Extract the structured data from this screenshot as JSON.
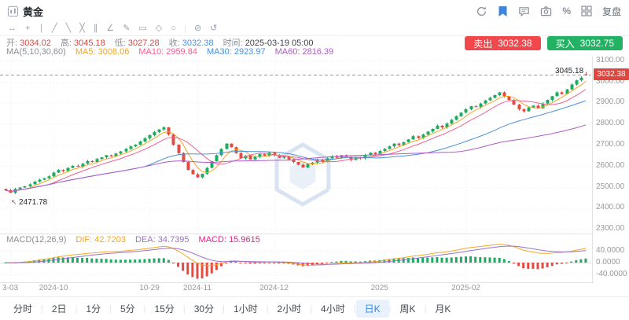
{
  "header": {
    "title": "黄金",
    "replay_label": "复盘"
  },
  "toolbar": {
    "icons": [
      {
        "name": "cursor-move-icon",
        "glyph": "↔"
      },
      {
        "name": "crosshair-icon",
        "glyph": "+"
      },
      {
        "name": "vertical-line-icon",
        "glyph": "∣"
      },
      {
        "name": "trend-line-icon",
        "glyph": "╱"
      },
      {
        "name": "ray-line-icon",
        "glyph": "╲"
      },
      {
        "name": "cross-lines-icon",
        "glyph": "╳"
      },
      {
        "name": "parallel-channel-icon",
        "glyph": "∥"
      },
      {
        "name": "angle-icon",
        "glyph": "∠"
      },
      {
        "name": "pencil-icon",
        "glyph": "✎"
      },
      {
        "name": "rectangle-icon",
        "glyph": "▭"
      },
      {
        "name": "diamond-icon",
        "glyph": "◇"
      },
      {
        "name": "circle-icon",
        "glyph": "○"
      },
      {
        "name": "eraser-icon",
        "glyph": "⊘"
      },
      {
        "name": "undo-icon",
        "glyph": "↺"
      }
    ]
  },
  "ohlc_bar": {
    "open_label": "开:",
    "open": "3034.02",
    "high_label": "高:",
    "high": "3045.18",
    "low_label": "低:",
    "low": "3027.28",
    "close_label": "收:",
    "close": "3032.38",
    "time_label": "时间:",
    "time": "2025-03-19 05:00"
  },
  "ma_bar": {
    "group": "MA(5,10,30,60)",
    "ma5_label": "MA5:",
    "ma5": "3008.06",
    "ma10_label": "MA10:",
    "ma10": "2959.84",
    "ma30_label": "MA30:",
    "ma30": "2923.97",
    "ma60_label": "MA60:",
    "ma60": "2816.39"
  },
  "macd_bar": {
    "group": "MACD(12,26,9)",
    "dif_label": "DIF:",
    "dif": "42.7203",
    "dea_label": "DEA:",
    "dea": "34.7395",
    "macd_label": "MACD:",
    "macd": "15.9615"
  },
  "trade": {
    "sell_label": "卖出",
    "sell_price": "3032.38",
    "buy_label": "买入",
    "buy_price": "3032.75"
  },
  "annotations": {
    "high": "3045.18",
    "low": "2471.78"
  },
  "price_tag": "3032.38",
  "axes": {
    "price_ticks": [
      "3100.00",
      "3000.00",
      "2900.00",
      "2800.00",
      "2700.00",
      "2600.00",
      "2500.00",
      "2400.00",
      "2300.00"
    ],
    "macd_ticks": [
      "40.0000",
      "0.0000",
      "-40.0000"
    ],
    "x_labels": [
      {
        "label": "3-03",
        "index": 1
      },
      {
        "label": "2024-10",
        "index": 10
      },
      {
        "label": "10-29",
        "index": 30
      },
      {
        "label": "2024-11",
        "index": 40
      },
      {
        "label": "2024-12",
        "index": 56
      },
      {
        "label": "2025",
        "index": 78
      },
      {
        "label": "2025-02",
        "index": 96
      }
    ]
  },
  "timeframe_tabs": [
    {
      "label": "分时",
      "active": false
    },
    {
      "label": "2日",
      "active": false
    },
    {
      "label": "1分",
      "active": false
    },
    {
      "label": "5分",
      "active": false
    },
    {
      "label": "15分",
      "active": false
    },
    {
      "label": "30分",
      "active": false
    },
    {
      "label": "1小时",
      "active": false
    },
    {
      "label": "2小时",
      "active": false
    },
    {
      "label": "4小时",
      "active": false
    },
    {
      "label": "日K",
      "active": true
    },
    {
      "label": "周K",
      "active": false
    },
    {
      "label": "月K",
      "active": false
    }
  ],
  "colors": {
    "up": "#1cab61",
    "down": "#e24b42",
    "ma5": "#f5a623",
    "ma10": "#f06292",
    "ma30": "#4a90d9",
    "ma60": "#b05ac6",
    "dif": "#f5a623",
    "dea": "#9b6fd0",
    "sell": "#f0484d",
    "buy": "#22b264",
    "tag": "#e2453d",
    "watermark": "#7fa4d2"
  },
  "chart_data": {
    "type": "candlestick",
    "symbol": "黄金",
    "period": "日K",
    "price_range": [
      2300,
      3100
    ],
    "macd_range": [
      -60,
      60
    ],
    "overlays": [
      "MA5",
      "MA10",
      "MA30",
      "MA60"
    ],
    "sub_indicator": "MACD(12,26,9)",
    "closes": [
      2484,
      2472,
      2490,
      2497,
      2503,
      2512,
      2525,
      2534,
      2541,
      2550,
      2568,
      2580,
      2575,
      2590,
      2600,
      2595,
      2610,
      2622,
      2618,
      2632,
      2640,
      2650,
      2645,
      2658,
      2668,
      2680,
      2692,
      2700,
      2715,
      2730,
      2745,
      2760,
      2772,
      2782,
      2748,
      2700,
      2660,
      2618,
      2580,
      2560,
      2545,
      2562,
      2590,
      2622,
      2650,
      2680,
      2705,
      2688,
      2660,
      2635,
      2648,
      2630,
      2642,
      2655,
      2648,
      2662,
      2650,
      2638,
      2645,
      2630,
      2618,
      2605,
      2592,
      2608,
      2615,
      2628,
      2620,
      2635,
      2645,
      2638,
      2650,
      2642,
      2628,
      2640,
      2635,
      2650,
      2662,
      2655,
      2670,
      2680,
      2692,
      2705,
      2698,
      2712,
      2725,
      2740,
      2732,
      2748,
      2762,
      2775,
      2790,
      2782,
      2800,
      2818,
      2835,
      2852,
      2868,
      2882,
      2878,
      2895,
      2910,
      2922,
      2935,
      2948,
      2930,
      2912,
      2890,
      2868,
      2858,
      2876,
      2885,
      2872,
      2895,
      2912,
      2930,
      2948,
      2940,
      2962,
      2985,
      3005,
      3018,
      3032.38
    ],
    "last_candle": {
      "open": 3034.02,
      "high": 3045.18,
      "low": 3027.28,
      "close": 3032.38
    },
    "low_annotation": {
      "index": 1,
      "price": 2471.78
    }
  }
}
